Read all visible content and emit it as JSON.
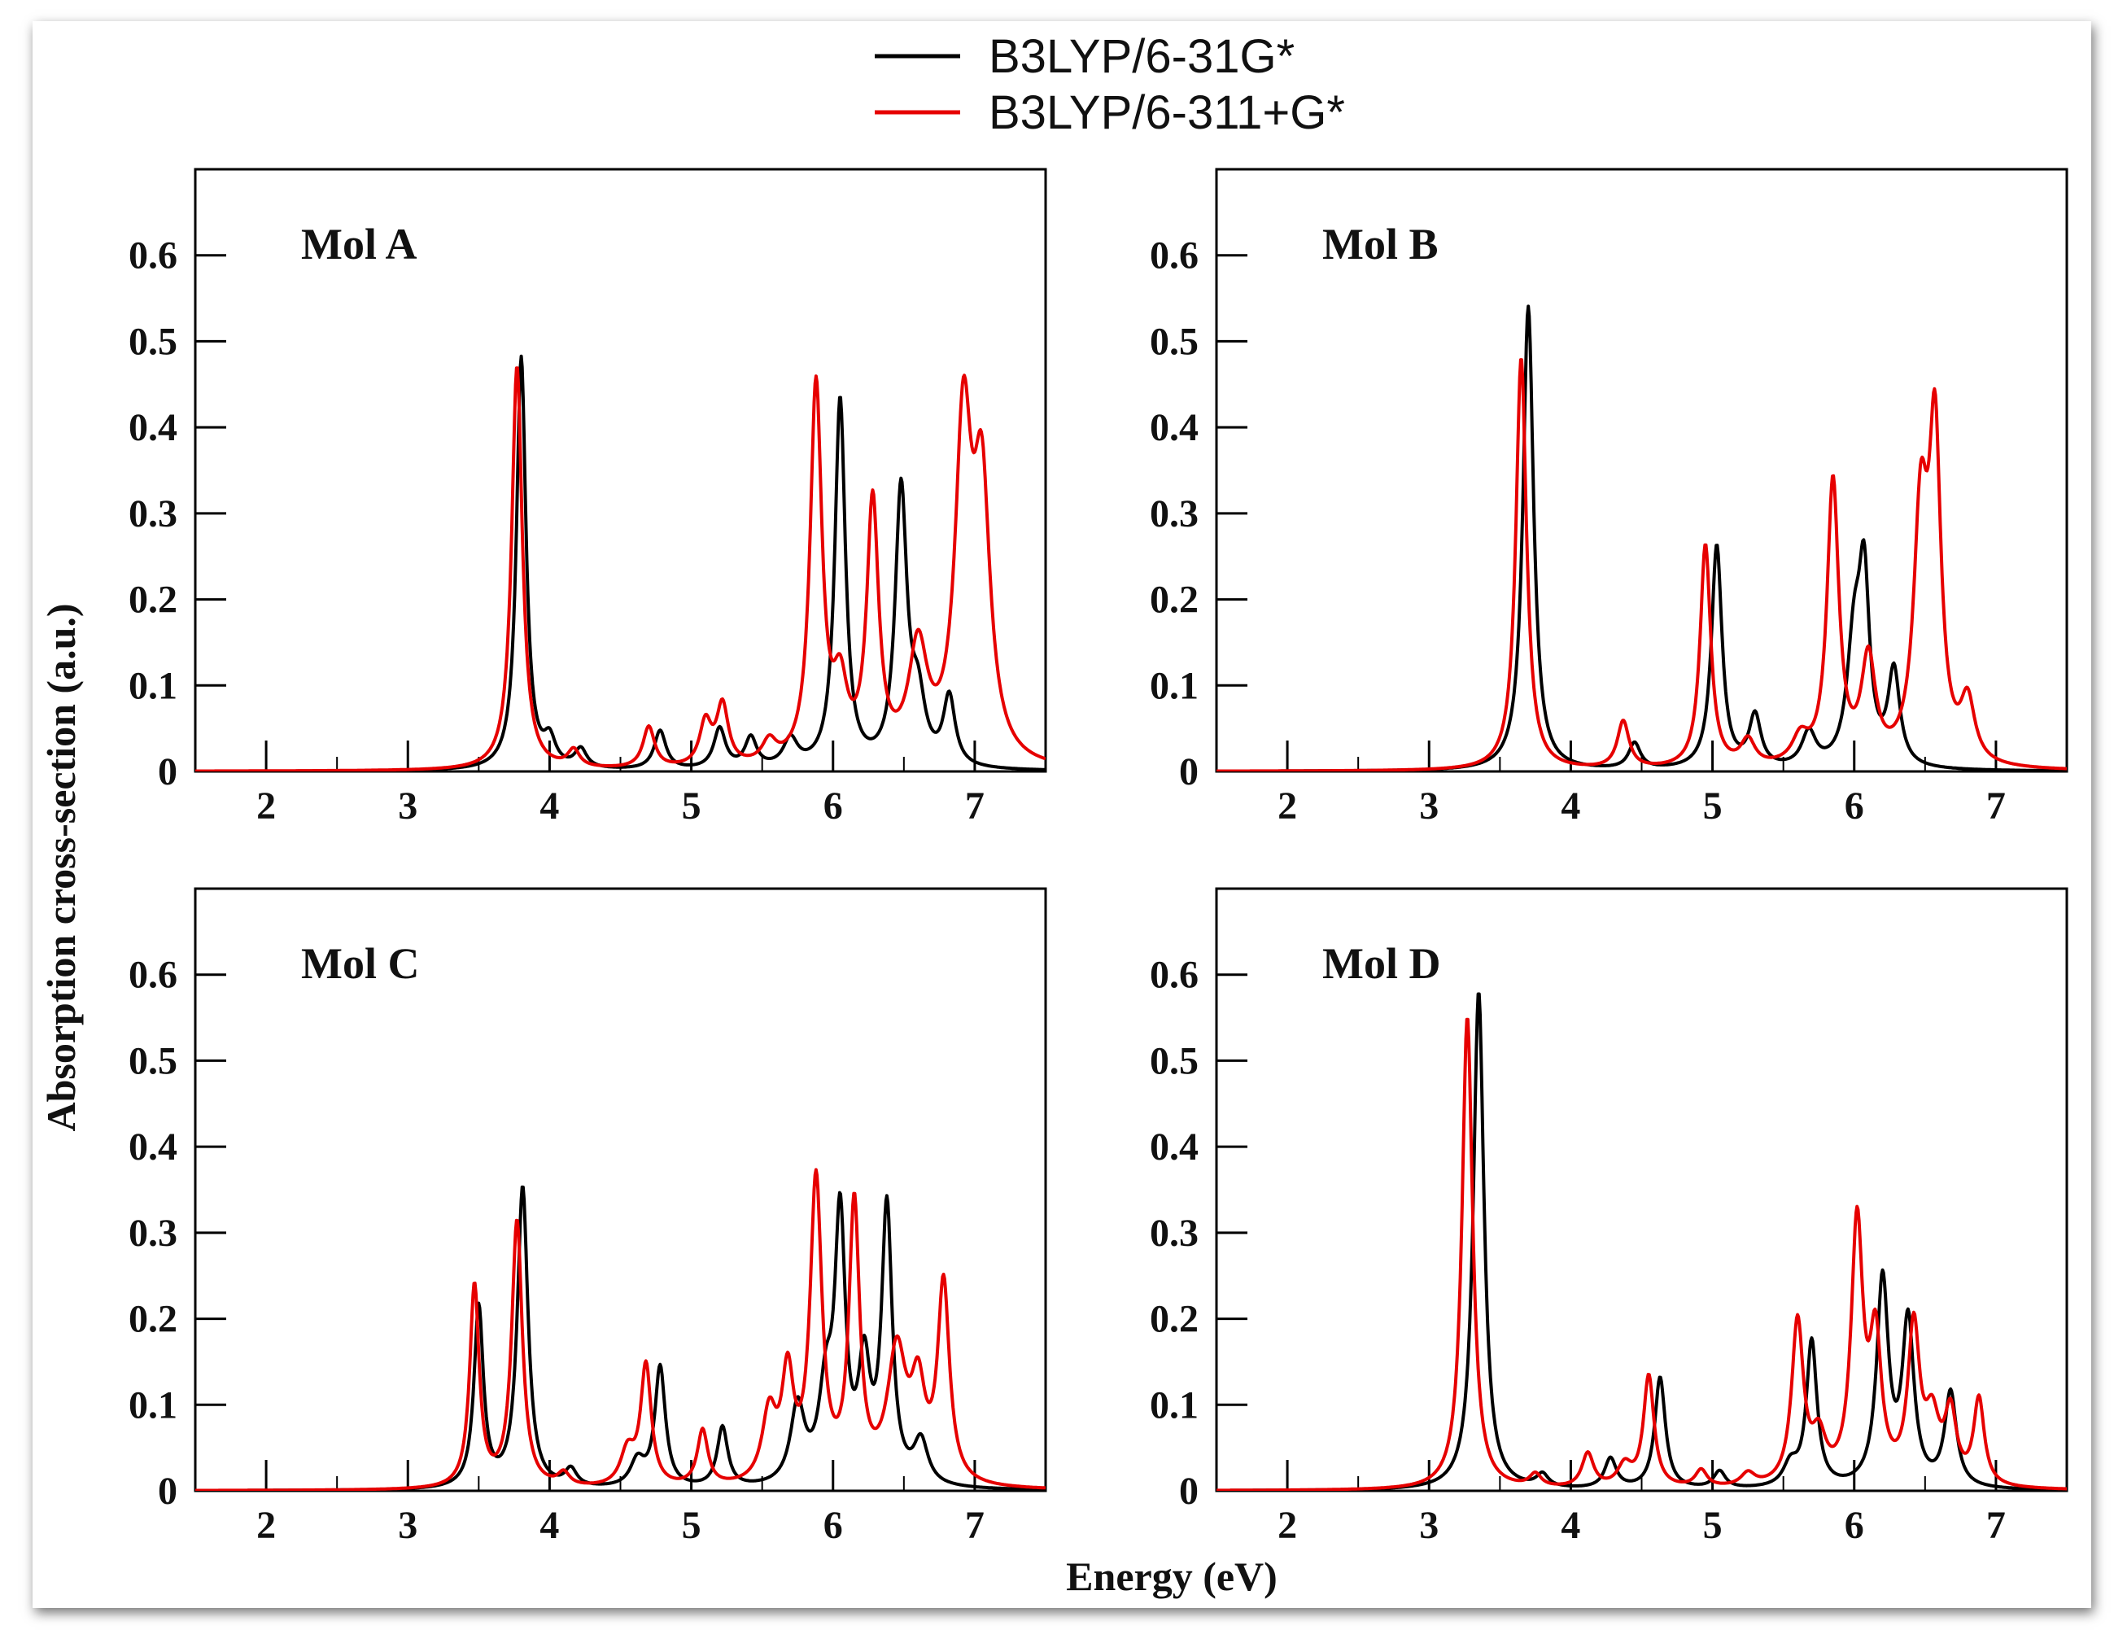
{
  "chart_data": {
    "type": "line",
    "xlabel": "Energy (eV)",
    "ylabel": "Absorption cross-section (a.u.)",
    "xlim": [
      1.5,
      7.5
    ],
    "ylim": [
      0,
      0.7
    ],
    "xticks": [
      2,
      3,
      4,
      5,
      6,
      7
    ],
    "yticks": [
      0,
      0.1,
      0.2,
      0.3,
      0.4,
      0.5,
      0.6
    ],
    "tick_labels_y": [
      "0",
      "0.1",
      "0.2",
      "0.3",
      "0.4",
      "0.5",
      "0.6"
    ],
    "tick_labels_x": [
      "2",
      "3",
      "4",
      "5",
      "6",
      "7"
    ],
    "legend": {
      "placement": "top-center",
      "entries": [
        {
          "name": "B3LYP/6-31G*",
          "color": "#000000"
        },
        {
          "name": "B3LYP/6-311+G*",
          "color": "#e60000"
        }
      ]
    },
    "panels": [
      {
        "title": "Mol A",
        "series": [
          {
            "name": "B3LYP/6-31G*",
            "color": "#000000",
            "peaks": [
              [
                3.8,
                0.48,
                0.04
              ],
              [
                4.0,
                0.03,
                0.05
              ],
              [
                4.22,
                0.022,
                0.05
              ],
              [
                4.78,
                0.045,
                0.05
              ],
              [
                5.2,
                0.047,
                0.05
              ],
              [
                5.42,
                0.035,
                0.05
              ],
              [
                5.7,
                0.032,
                0.06
              ],
              [
                6.05,
                0.43,
                0.045
              ],
              [
                6.48,
                0.32,
                0.05
              ],
              [
                6.6,
                0.07,
                0.06
              ],
              [
                6.82,
                0.08,
                0.05
              ]
            ]
          },
          {
            "name": "B3LYP/6-311+G*",
            "color": "#e60000",
            "peaks": [
              [
                3.77,
                0.47,
                0.045
              ],
              [
                4.17,
                0.02,
                0.05
              ],
              [
                4.7,
                0.048,
                0.05
              ],
              [
                5.1,
                0.05,
                0.05
              ],
              [
                5.22,
                0.07,
                0.05
              ],
              [
                5.55,
                0.025,
                0.06
              ],
              [
                5.88,
                0.44,
                0.05
              ],
              [
                6.05,
                0.08,
                0.06
              ],
              [
                6.28,
                0.3,
                0.05
              ],
              [
                6.6,
                0.13,
                0.08
              ],
              [
                6.92,
                0.38,
                0.07
              ],
              [
                7.05,
                0.3,
                0.07
              ]
            ]
          }
        ]
      },
      {
        "title": "Mol B",
        "series": [
          {
            "name": "B3LYP/6-31G*",
            "color": "#000000",
            "peaks": [
              [
                3.7,
                0.54,
                0.045
              ],
              [
                4.45,
                0.03,
                0.05
              ],
              [
                5.03,
                0.26,
                0.045
              ],
              [
                5.3,
                0.06,
                0.05
              ],
              [
                5.68,
                0.04,
                0.06
              ],
              [
                6.0,
                0.14,
                0.06
              ],
              [
                6.07,
                0.2,
                0.045
              ],
              [
                6.28,
                0.11,
                0.05
              ]
            ]
          },
          {
            "name": "B3LYP/6-311+G*",
            "color": "#e60000",
            "peaks": [
              [
                3.65,
                0.48,
                0.045
              ],
              [
                4.37,
                0.055,
                0.05
              ],
              [
                4.95,
                0.26,
                0.045
              ],
              [
                5.25,
                0.03,
                0.06
              ],
              [
                5.62,
                0.03,
                0.07
              ],
              [
                5.85,
                0.33,
                0.05
              ],
              [
                6.1,
                0.12,
                0.06
              ],
              [
                6.47,
                0.28,
                0.06
              ],
              [
                6.57,
                0.36,
                0.05
              ],
              [
                6.8,
                0.07,
                0.06
              ]
            ]
          }
        ]
      },
      {
        "title": "Mol C",
        "series": [
          {
            "name": "B3LYP/6-31G*",
            "color": "#000000",
            "peaks": [
              [
                3.5,
                0.21,
                0.04
              ],
              [
                3.81,
                0.35,
                0.045
              ],
              [
                4.15,
                0.02,
                0.05
              ],
              [
                4.62,
                0.03,
                0.06
              ],
              [
                4.78,
                0.14,
                0.045
              ],
              [
                5.22,
                0.07,
                0.045
              ],
              [
                5.75,
                0.09,
                0.06
              ],
              [
                5.95,
                0.1,
                0.06
              ],
              [
                6.05,
                0.3,
                0.045
              ],
              [
                6.22,
                0.13,
                0.05
              ],
              [
                6.38,
                0.32,
                0.045
              ],
              [
                6.62,
                0.05,
                0.06
              ]
            ]
          },
          {
            "name": "B3LYP/6-311+G*",
            "color": "#e60000",
            "peaks": [
              [
                3.47,
                0.235,
                0.04
              ],
              [
                3.77,
                0.31,
                0.045
              ],
              [
                4.1,
                0.015,
                0.05
              ],
              [
                4.55,
                0.04,
                0.06
              ],
              [
                4.68,
                0.14,
                0.045
              ],
              [
                5.08,
                0.065,
                0.045
              ],
              [
                5.55,
                0.08,
                0.06
              ],
              [
                5.68,
                0.12,
                0.05
              ],
              [
                5.88,
                0.35,
                0.05
              ],
              [
                6.15,
                0.32,
                0.045
              ],
              [
                6.45,
                0.15,
                0.08
              ],
              [
                6.6,
                0.1,
                0.06
              ],
              [
                6.78,
                0.23,
                0.05
              ]
            ]
          }
        ]
      },
      {
        "title": "Mol D",
        "series": [
          {
            "name": "B3LYP/6-31G*",
            "color": "#000000",
            "peaks": [
              [
                3.35,
                0.58,
                0.045
              ],
              [
                3.8,
                0.015,
                0.05
              ],
              [
                4.28,
                0.035,
                0.05
              ],
              [
                4.63,
                0.13,
                0.045
              ],
              [
                5.05,
                0.02,
                0.05
              ],
              [
                5.55,
                0.025,
                0.06
              ],
              [
                5.7,
                0.17,
                0.045
              ],
              [
                6.2,
                0.24,
                0.05
              ],
              [
                6.38,
                0.19,
                0.05
              ],
              [
                6.68,
                0.11,
                0.05
              ]
            ]
          },
          {
            "name": "B3LYP/6-311+G*",
            "color": "#e60000",
            "peaks": [
              [
                3.27,
                0.55,
                0.045
              ],
              [
                3.75,
                0.015,
                0.05
              ],
              [
                4.12,
                0.04,
                0.05
              ],
              [
                4.38,
                0.025,
                0.06
              ],
              [
                4.55,
                0.13,
                0.045
              ],
              [
                4.92,
                0.02,
                0.05
              ],
              [
                5.25,
                0.015,
                0.06
              ],
              [
                5.6,
                0.19,
                0.05
              ],
              [
                5.75,
                0.05,
                0.06
              ],
              [
                6.02,
                0.3,
                0.05
              ],
              [
                6.15,
                0.16,
                0.05
              ],
              [
                6.42,
                0.18,
                0.05
              ],
              [
                6.55,
                0.07,
                0.06
              ],
              [
                6.68,
                0.08,
                0.05
              ],
              [
                6.88,
                0.1,
                0.045
              ]
            ]
          }
        ]
      }
    ]
  }
}
